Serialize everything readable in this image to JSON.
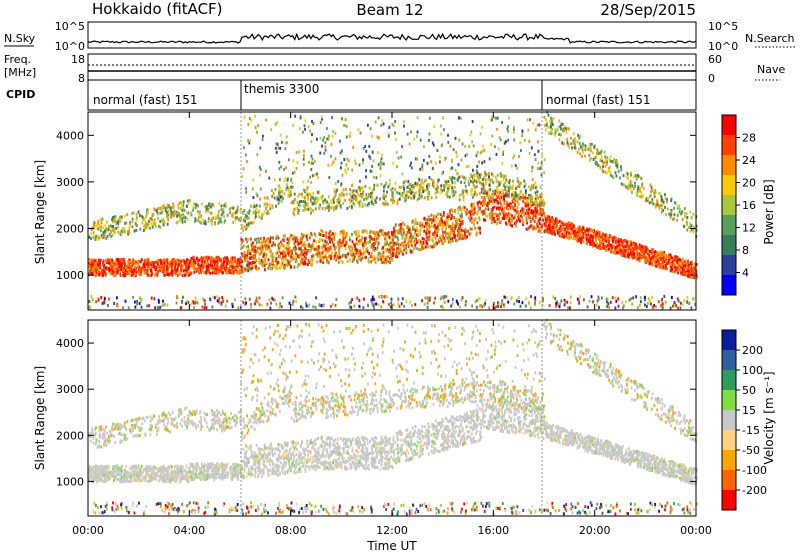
{
  "header": {
    "title": "Hokkaido (fitACF)",
    "beam": "Beam 12",
    "date": "28/Sep/2015"
  },
  "noise_panel": {
    "left_label": "N.Sky",
    "right_label": "N.Search",
    "left_ticks": [
      "10^5",
      "10^0"
    ],
    "right_ticks": [
      "10^5",
      "10^0"
    ]
  },
  "freq_panel": {
    "left_label_top": "Freq.",
    "left_label_bottom": "[MHz]",
    "left_ticks": [
      "18",
      "8"
    ],
    "right_label": "Nave",
    "right_ticks": [
      "60",
      "0"
    ]
  },
  "cpid_panel": {
    "label": "CPID",
    "segments": [
      {
        "label": "normal (fast) 151"
      },
      {
        "label": "themis 3300"
      },
      {
        "label": "normal (fast) 151"
      }
    ]
  },
  "colors": {
    "power": [
      "#0000ff",
      "#2d3f9b",
      "#3a7d5b",
      "#5aa05a",
      "#a8c83a",
      "#ffc800",
      "#ff8c00",
      "#ff4000",
      "#ff0000"
    ],
    "velocity": [
      "#ff0000",
      "#ff6400",
      "#ffa500",
      "#ffd27f",
      "#c8c8c8",
      "#7fdf3f",
      "#2d9e5a",
      "#2d5ea0",
      "#0a1ea0"
    ]
  },
  "chart_data": [
    {
      "type": "heatmap",
      "title": "",
      "xlabel": "Time UT",
      "ylabel": "Slant Range [km]",
      "x_ticks": [
        "00:00",
        "04:00",
        "08:00",
        "12:00",
        "16:00",
        "20:00",
        "00:00"
      ],
      "y_ticks": [
        "1000",
        "2000",
        "3000",
        "4000"
      ],
      "ylim": [
        250,
        4500
      ],
      "colorbar": {
        "label": "Power [dB]",
        "ticks": [
          "4",
          "8",
          "12",
          "16",
          "20",
          "24",
          "28"
        ]
      }
    },
    {
      "type": "heatmap",
      "title": "",
      "xlabel": "Time UT",
      "ylabel": "Slant Range [km]",
      "x_ticks": [
        "00:00",
        "04:00",
        "08:00",
        "12:00",
        "16:00",
        "20:00",
        "00:00"
      ],
      "y_ticks": [
        "1000",
        "2000",
        "3000",
        "4000"
      ],
      "ylim": [
        250,
        4500
      ],
      "colorbar": {
        "label": "Velocity [m s⁻¹]",
        "ticks": [
          "200",
          "100",
          "50",
          "15",
          "-15",
          "-50",
          "-100",
          "-200"
        ]
      }
    }
  ]
}
